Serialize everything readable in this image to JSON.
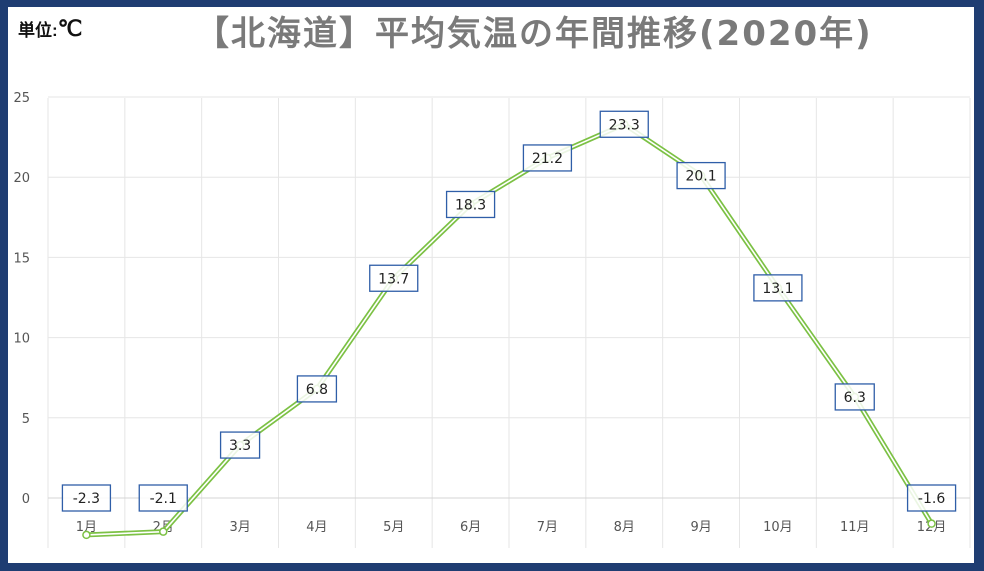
{
  "unit": {
    "label": "単位:",
    "symbol": "℃"
  },
  "chart_data": {
    "type": "line",
    "title": "【北海道】平均気温の年間推移(2020年)",
    "categories": [
      "1月",
      "2月",
      "3月",
      "4月",
      "5月",
      "6月",
      "7月",
      "8月",
      "9月",
      "10月",
      "11月",
      "12月"
    ],
    "values": [
      -2.3,
      -2.1,
      3.3,
      6.8,
      13.7,
      18.3,
      21.2,
      23.3,
      20.1,
      13.1,
      6.3,
      -1.6
    ],
    "data_labels": [
      "-2.3",
      "-2.1",
      "3.3",
      "6.8",
      "13.7",
      "18.3",
      "21.2",
      "23.3",
      "20.1",
      "13.1",
      "6.3",
      "-1.6"
    ],
    "yticks": [
      0,
      5,
      10,
      15,
      20,
      25
    ],
    "ylim": [
      -2.5,
      25
    ],
    "grid": true,
    "colors": {
      "line": "#7cc144",
      "label_border": "#2f5ea8",
      "grid": "#e6e6e6",
      "frame": "#1f3d72"
    }
  }
}
